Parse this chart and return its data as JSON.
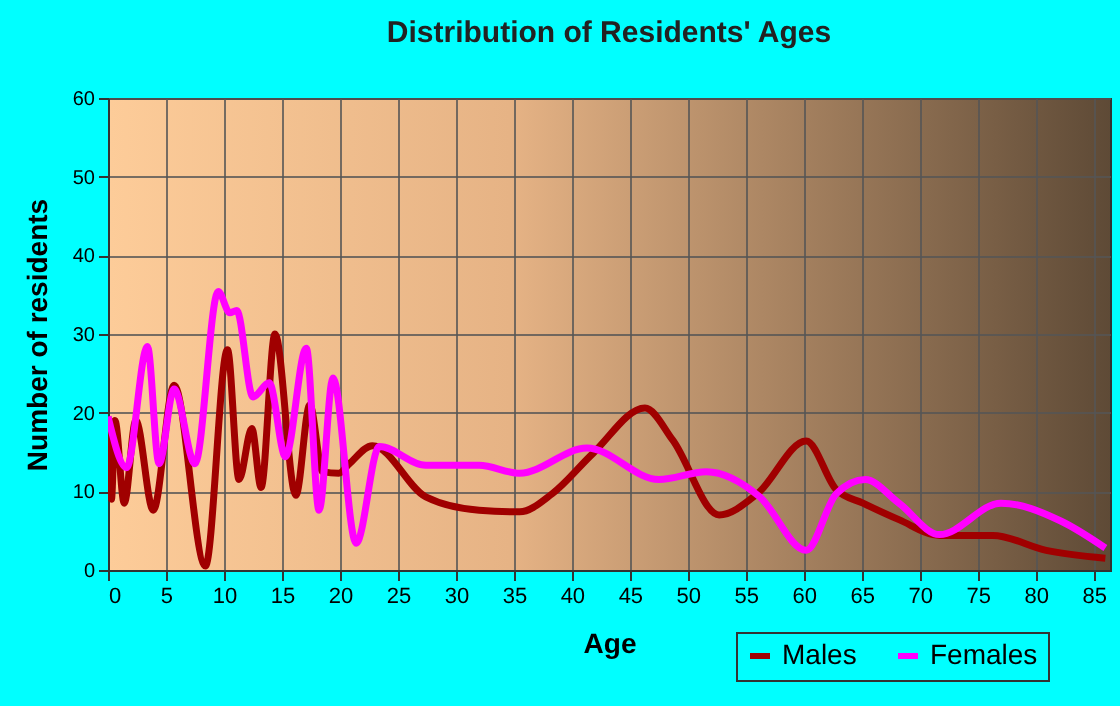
{
  "chart_data": {
    "type": "line",
    "title": "Distribution of Residents' Ages",
    "xlabel": "Age",
    "ylabel": "Number of residents",
    "xlim": [
      0,
      86.4
    ],
    "xticks": [
      0,
      5,
      10,
      15,
      20,
      25,
      30,
      35,
      40,
      45,
      50,
      55,
      60,
      65,
      70,
      75,
      80,
      85
    ],
    "ylim": [
      0,
      60
    ],
    "yticks": [
      0,
      10,
      20,
      30,
      40,
      50,
      60
    ],
    "grid": true,
    "legend": "bottom right",
    "marker": "none",
    "line_style": "solid",
    "series": [
      {
        "name": "Males",
        "color": "#a00000",
        "x": [
          0,
          0.3,
          0.6,
          1.4,
          2.4,
          3.9,
          5.7,
          8.4,
          10.3,
          11.3,
          12.4,
          13.2,
          14.4,
          16.2,
          17.4,
          18.5,
          19.9,
          20.8,
          22.8,
          27.4,
          32,
          35.5,
          38.3,
          41.8,
          46.3,
          48.7,
          52.7,
          56,
          60.2,
          62.8,
          65.1,
          68.2,
          71.7,
          76.3,
          80.9,
          86
        ],
        "values": [
          19.5,
          9,
          19,
          8.5,
          19,
          7.6,
          23.5,
          0.5,
          28,
          11.5,
          18,
          10.5,
          30,
          9.5,
          21,
          12.5,
          12.3,
          13.5,
          15.8,
          9.3,
          7.6,
          7.4,
          9.7,
          14.8,
          20.6,
          16.5,
          7,
          9.7,
          16.4,
          10.2,
          8.5,
          6.4,
          4.4,
          4.4,
          2.5,
          1.5
        ]
      },
      {
        "name": "Females",
        "color": "#ff00ff",
        "x": [
          0,
          1.6,
          3.4,
          4.4,
          5.7,
          7.5,
          9.5,
          10.5,
          11.1,
          12.5,
          13.9,
          15.3,
          17.1,
          18.2,
          19.4,
          21.4,
          23.4,
          27.4,
          32,
          35.5,
          41.3,
          47.5,
          51.6,
          56.2,
          60.2,
          62.8,
          65.3,
          68.2,
          71.7,
          77,
          82.2,
          86
        ],
        "values": [
          19.5,
          13,
          28.4,
          13.5,
          23,
          13.5,
          35.4,
          32.7,
          33,
          22,
          23.8,
          14.4,
          28.2,
          7.6,
          24.4,
          3.4,
          15.7,
          13.3,
          13.3,
          12.3,
          15.5,
          11.5,
          12.5,
          9.3,
          2.5,
          9.7,
          11.5,
          8.5,
          4.5,
          8.5,
          6.2,
          2.8
        ]
      }
    ]
  }
}
